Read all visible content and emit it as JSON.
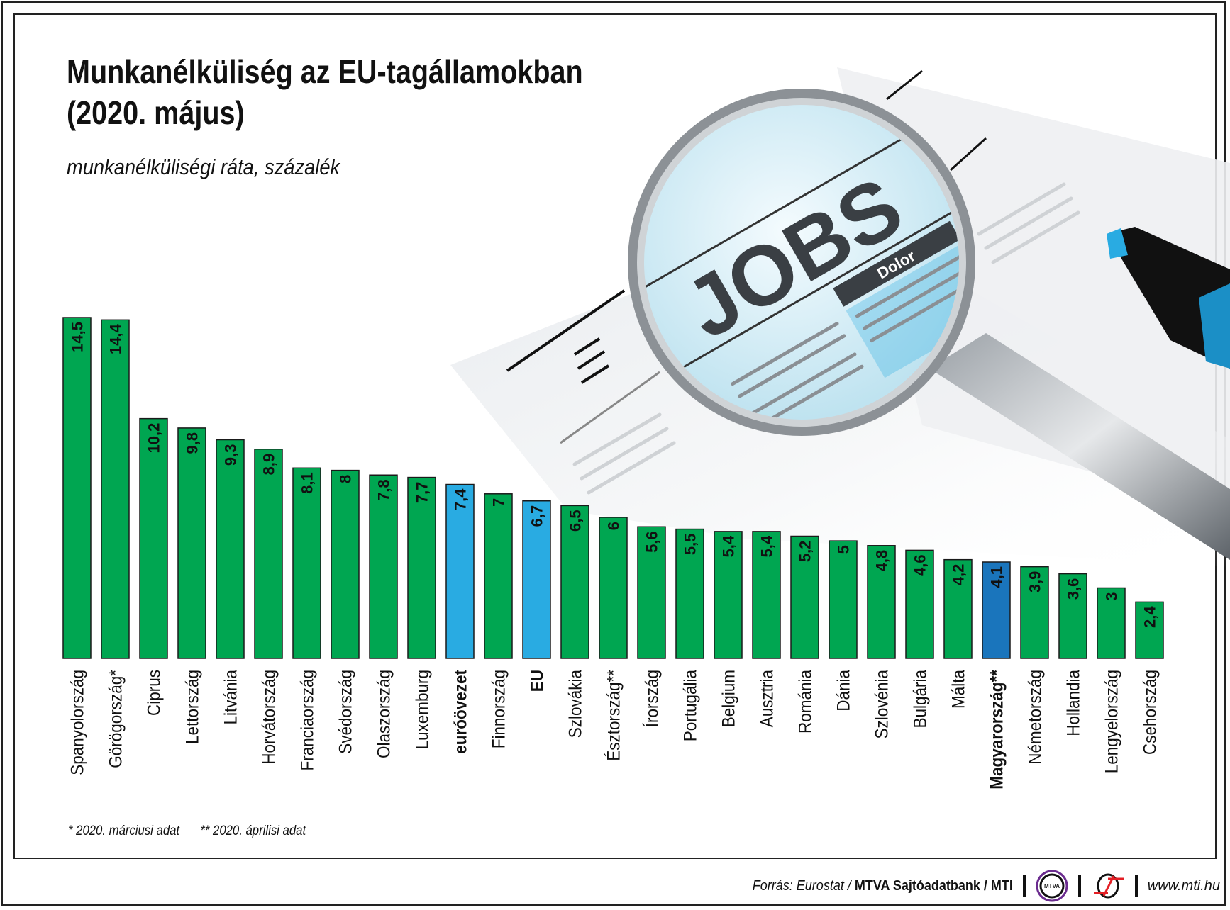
{
  "title_line1": "Munkanélküliség az EU-tagállamokban",
  "title_line2": "(2020. május)",
  "subtitle": "munkanélküliségi ráta, százalék",
  "illustration": {
    "headline": "JOBS",
    "banner": "Dolor"
  },
  "colors": {
    "default": "#00a651",
    "eu_aggregate": "#29abe2",
    "hungary": "#1a75bc"
  },
  "chart_data": {
    "type": "bar",
    "title": "Munkanélküliség az EU-tagállamokban (2020. május)",
    "ylabel": "munkanélküliségi ráta, százalék",
    "ylim": [
      0,
      14.5
    ],
    "grid": false,
    "categories": [
      "Spanyolország",
      "Görögország*",
      "Ciprus",
      "Lettország",
      "Litvánia",
      "Horvátország",
      "Franciaország",
      "Svédország",
      "Olaszország",
      "Luxemburg",
      "euróövezet",
      "Finnország",
      "EU",
      "Szlovákia",
      "Észtország**",
      "Írország",
      "Portugália",
      "Belgium",
      "Ausztria",
      "Románia",
      "Dánia",
      "Szlovénia",
      "Bulgária",
      "Málta",
      "Magyarország**",
      "Németország",
      "Hollandia",
      "Lengyelország",
      "Csehország"
    ],
    "values": [
      14.5,
      14.4,
      10.2,
      9.8,
      9.3,
      8.9,
      8.1,
      8,
      7.8,
      7.7,
      7.4,
      7,
      6.7,
      6.5,
      6,
      5.6,
      5.5,
      5.4,
      5.4,
      5.2,
      5,
      4.8,
      4.6,
      4.2,
      4.1,
      3.9,
      3.6,
      3,
      2.4
    ],
    "value_labels": [
      "14,5",
      "14,4",
      "10,2",
      "9,8",
      "9,3",
      "8,9",
      "8,1",
      "8",
      "7,8",
      "7,7",
      "7,4",
      "7",
      "6,7",
      "6,5",
      "6",
      "5,6",
      "5,5",
      "5,4",
      "5,4",
      "5,2",
      "5",
      "4,8",
      "4,6",
      "4,2",
      "4,1",
      "3,9",
      "3,6",
      "3",
      "2,4"
    ],
    "highlight": {
      "euróövezet": "eu_aggregate",
      "EU": "eu_aggregate",
      "Magyarország**": "hungary"
    },
    "bold_labels": [
      "euróövezet",
      "EU",
      "Magyarország**"
    ]
  },
  "footnotes": [
    "* 2020. márciusi adat",
    "** 2020. áprilisi adat"
  ],
  "footer": {
    "source_prefix": "Forrás: Eurostat / ",
    "source_bold": "MTVA Sajtóadatbank / MTI",
    "logo1": "MTVA",
    "website": "www.mti.hu"
  }
}
